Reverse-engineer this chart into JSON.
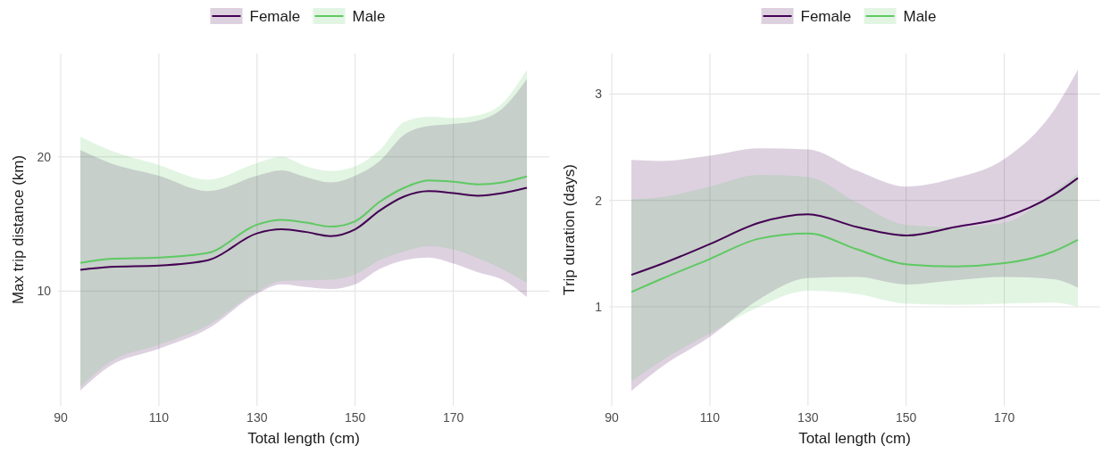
{
  "chart_data": [
    {
      "type": "line",
      "xlabel": "Total length (cm)",
      "ylabel": "Max trip distance (km)",
      "xlim": [
        89.45,
        189.55
      ],
      "xticks": [
        90,
        110,
        130,
        150,
        170
      ],
      "ylim": [
        1.45,
        27.7
      ],
      "yticks": [
        10,
        20
      ],
      "grid": true,
      "legend": "top",
      "x": [
        94,
        100,
        110,
        120,
        130,
        135,
        140,
        145,
        150,
        155,
        160,
        165,
        170,
        175,
        180,
        185
      ],
      "series": [
        {
          "name": "Female",
          "color": "#440154",
          "values": [
            11.58,
            11.8,
            11.9,
            12.3,
            14.3,
            14.6,
            14.4,
            14.1,
            14.6,
            16.0,
            17.05,
            17.45,
            17.3,
            17.1,
            17.3,
            17.7
          ],
          "lower": [
            2.6,
            4.4,
            5.7,
            7.2,
            9.8,
            10.5,
            10.3,
            10.15,
            10.5,
            11.65,
            12.3,
            12.5,
            12.05,
            11.4,
            10.85,
            9.55
          ],
          "upper": [
            20.5,
            19.55,
            18.6,
            17.45,
            18.6,
            19.0,
            18.5,
            18.1,
            18.6,
            19.7,
            21.65,
            22.3,
            22.45,
            22.7,
            23.6,
            25.8
          ]
        },
        {
          "name": "Male",
          "color": "#5ec962",
          "values": [
            12.1,
            12.4,
            12.5,
            12.85,
            14.95,
            15.3,
            15.1,
            14.8,
            15.2,
            16.65,
            17.7,
            18.25,
            18.15,
            17.95,
            18.1,
            18.55
          ],
          "lower": [
            2.85,
            4.7,
            6.0,
            7.45,
            9.95,
            10.75,
            10.8,
            10.85,
            11.25,
            12.3,
            12.95,
            13.35,
            13.1,
            12.45,
            11.65,
            10.6
          ],
          "upper": [
            21.5,
            20.5,
            19.4,
            18.3,
            19.55,
            20.0,
            19.3,
            18.95,
            19.3,
            20.5,
            22.6,
            23.0,
            22.9,
            23.1,
            24.0,
            26.5
          ]
        }
      ]
    },
    {
      "type": "line",
      "xlabel": "Total length (cm)",
      "ylabel": "Trip duration (days)",
      "xlim": [
        89.45,
        189.55
      ],
      "xticks": [
        90,
        110,
        130,
        150,
        170
      ],
      "ylim": [
        0.07,
        3.38
      ],
      "yticks": [
        1,
        2,
        3
      ],
      "grid": true,
      "legend": "top",
      "x": [
        94,
        100,
        110,
        120,
        130,
        140,
        150,
        160,
        170,
        180,
        185
      ],
      "series": [
        {
          "name": "Female",
          "color": "#440154",
          "values": [
            1.3,
            1.4,
            1.59,
            1.79,
            1.87,
            1.75,
            1.67,
            1.75,
            1.84,
            2.05,
            2.21
          ],
          "lower": [
            0.21,
            0.43,
            0.72,
            1.07,
            1.27,
            1.28,
            1.21,
            1.25,
            1.28,
            1.26,
            1.18
          ],
          "upper": [
            2.38,
            2.37,
            2.42,
            2.49,
            2.48,
            2.28,
            2.13,
            2.21,
            2.39,
            2.84,
            3.23
          ]
        },
        {
          "name": "Male",
          "color": "#5ec962",
          "values": [
            1.14,
            1.26,
            1.45,
            1.64,
            1.69,
            1.54,
            1.4,
            1.38,
            1.41,
            1.52,
            1.63
          ],
          "lower": [
            0.3,
            0.49,
            0.75,
            1.0,
            1.15,
            1.12,
            1.03,
            1.02,
            1.03,
            1.04,
            1.0
          ],
          "upper": [
            2.01,
            2.03,
            2.13,
            2.24,
            2.22,
            1.98,
            1.77,
            1.75,
            1.79,
            2.08,
            2.25
          ]
        }
      ]
    }
  ]
}
